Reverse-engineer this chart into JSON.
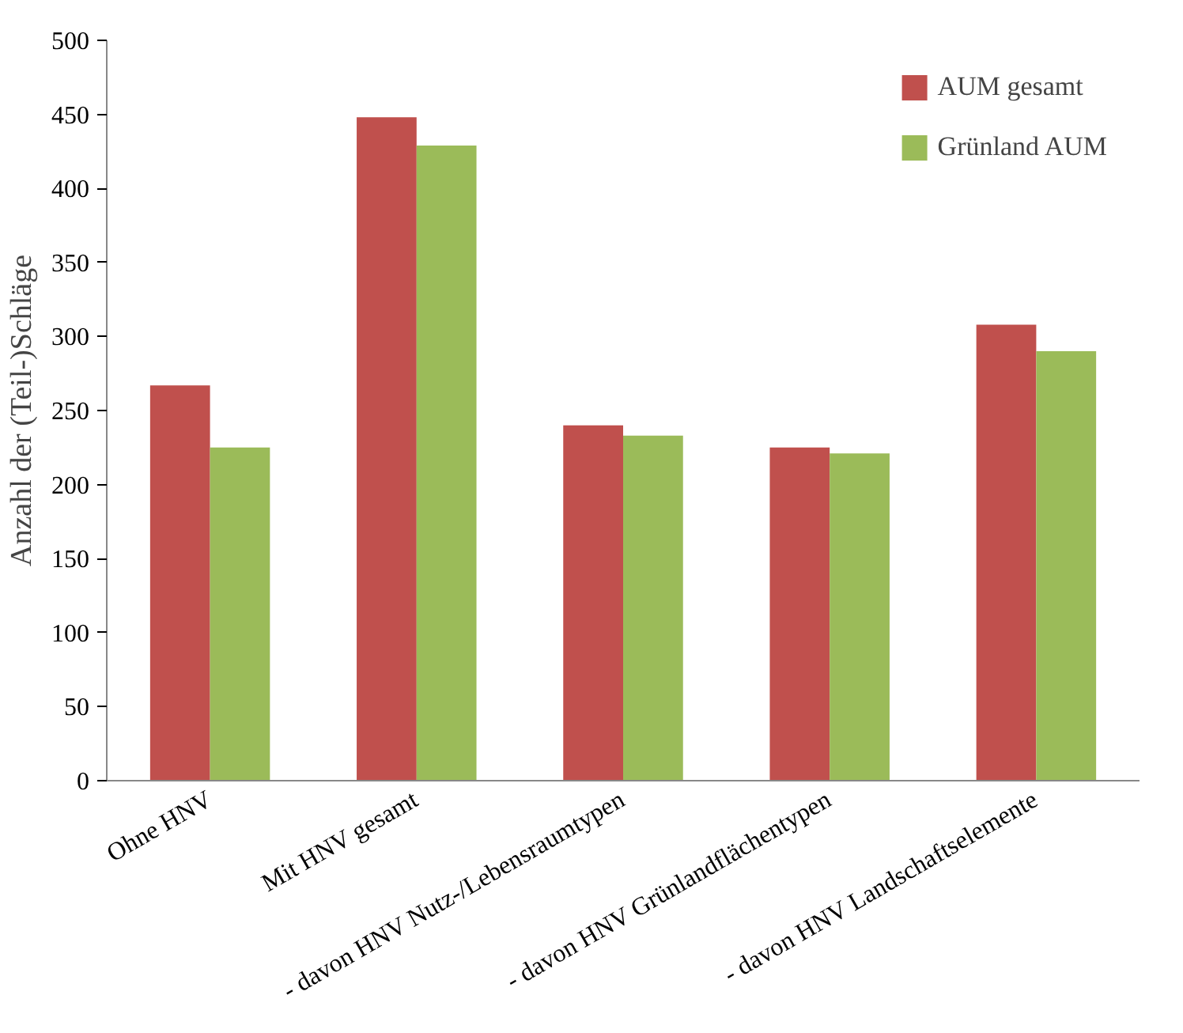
{
  "chart_data": {
    "type": "bar",
    "ylabel": "Anzahl der (Teil-)Schläge",
    "categories": [
      "Ohne HNV",
      "Mit HNV gesamt",
      "- davon HNV Nutz-/Lebensraumtypen",
      "- davon HNV Grünlandflächentypen",
      "- davon HNV Landschaftselemente"
    ],
    "series": [
      {
        "name": "AUM gesamt",
        "color": "#c0504d",
        "values": [
          267,
          448,
          240,
          225,
          308
        ]
      },
      {
        "name": "Grünland AUM",
        "color": "#9bbb59",
        "values": [
          225,
          429,
          233,
          221,
          290
        ]
      }
    ],
    "ylim": [
      0,
      500
    ],
    "yticks": [
      0,
      50,
      100,
      150,
      200,
      250,
      300,
      350,
      400,
      450,
      500
    ],
    "grid": false,
    "legend": "top right"
  }
}
